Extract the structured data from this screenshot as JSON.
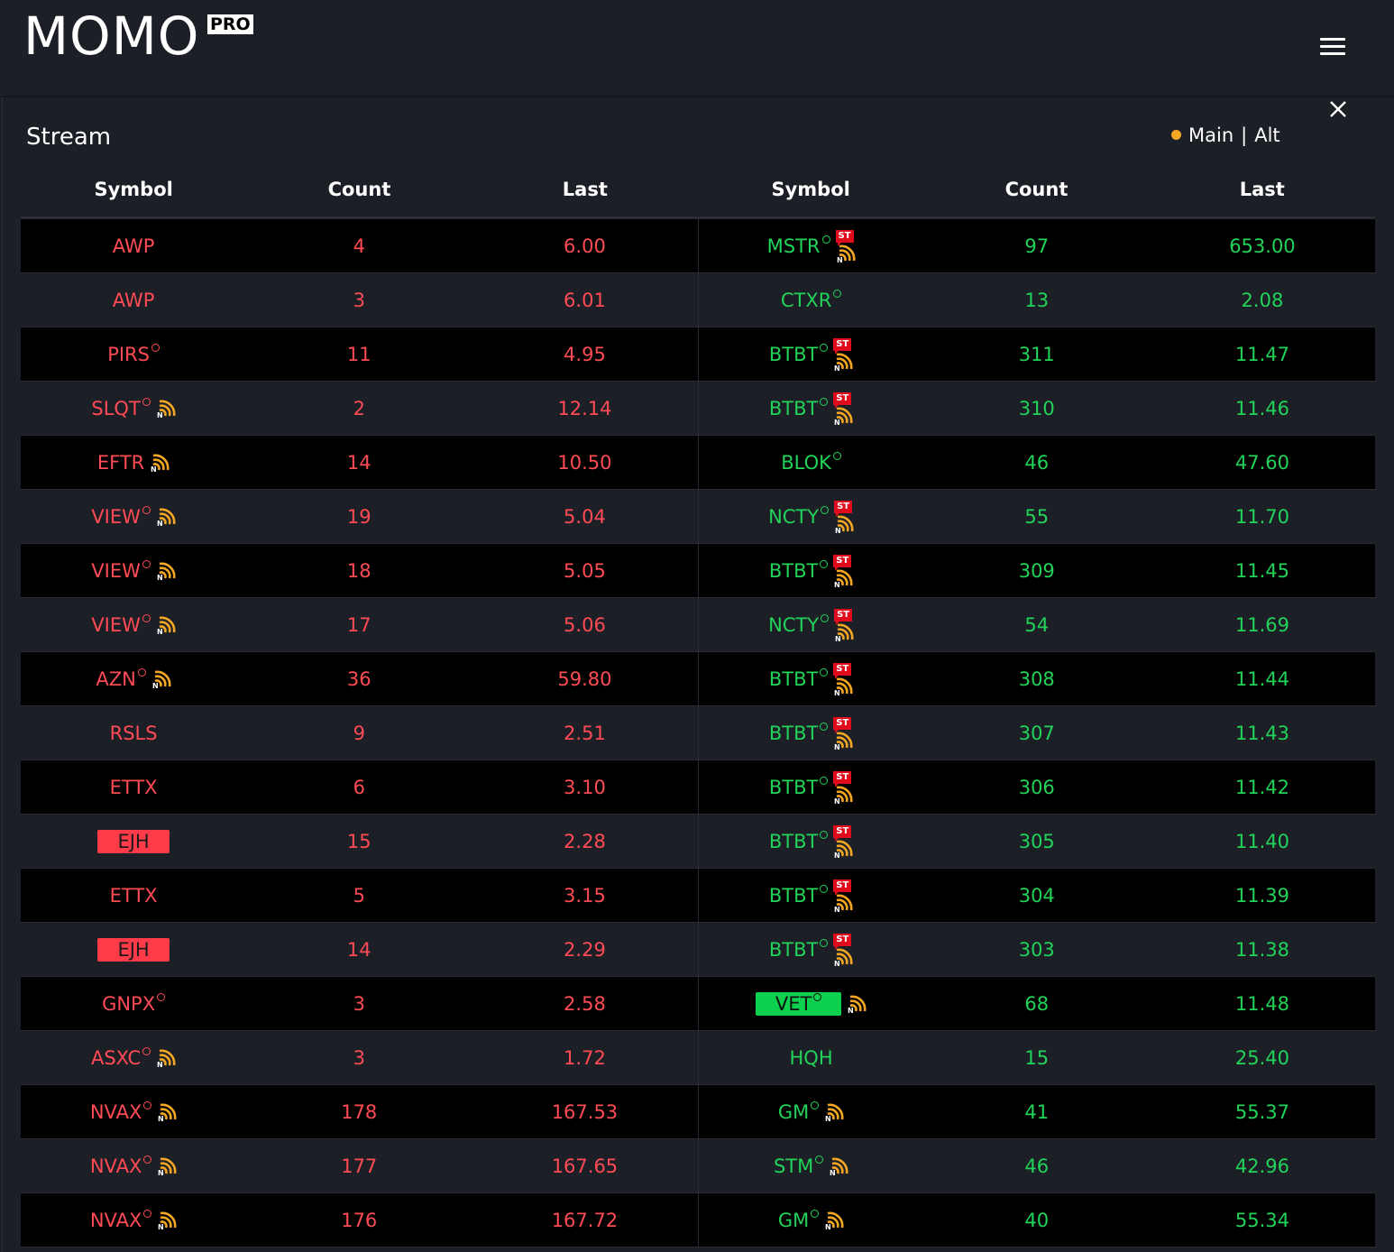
{
  "header": {
    "logo": "MOMO",
    "badge": "PRO"
  },
  "stream": {
    "title": "Stream",
    "mode_main": "Main",
    "mode_sep": "|",
    "mode_alt": "Alt"
  },
  "columns": [
    "Symbol",
    "Count",
    "Last",
    "Symbol",
    "Count",
    "Last"
  ],
  "colors": {
    "red": "#ff4b55",
    "green": "#22d35a",
    "halt_badge": "#ff3b4a",
    "up_badge": "#0ed04f",
    "news": "#f5a623",
    "st": "#e00b1c"
  },
  "left_rows": [
    {
      "symbol": "AWP",
      "count": "4",
      "last": "6.00",
      "ring": false,
      "news": false,
      "badge": false
    },
    {
      "symbol": "AWP",
      "count": "3",
      "last": "6.01",
      "ring": false,
      "news": false,
      "badge": false
    },
    {
      "symbol": "PIRS",
      "count": "11",
      "last": "4.95",
      "ring": true,
      "news": false,
      "badge": false
    },
    {
      "symbol": "SLQT",
      "count": "2",
      "last": "12.14",
      "ring": true,
      "news": true,
      "badge": false
    },
    {
      "symbol": "EFTR",
      "count": "14",
      "last": "10.50",
      "ring": false,
      "news": true,
      "badge": false
    },
    {
      "symbol": "VIEW",
      "count": "19",
      "last": "5.04",
      "ring": true,
      "news": true,
      "badge": false
    },
    {
      "symbol": "VIEW",
      "count": "18",
      "last": "5.05",
      "ring": true,
      "news": true,
      "badge": false
    },
    {
      "symbol": "VIEW",
      "count": "17",
      "last": "5.06",
      "ring": true,
      "news": true,
      "badge": false
    },
    {
      "symbol": "AZN",
      "count": "36",
      "last": "59.80",
      "ring": true,
      "news": true,
      "badge": false
    },
    {
      "symbol": "RSLS",
      "count": "9",
      "last": "2.51",
      "ring": false,
      "news": false,
      "badge": false
    },
    {
      "symbol": "ETTX",
      "count": "6",
      "last": "3.10",
      "ring": false,
      "news": false,
      "badge": false
    },
    {
      "symbol": "EJH",
      "count": "15",
      "last": "2.28",
      "ring": false,
      "news": false,
      "badge": true
    },
    {
      "symbol": "ETTX",
      "count": "5",
      "last": "3.15",
      "ring": false,
      "news": false,
      "badge": false
    },
    {
      "symbol": "EJH",
      "count": "14",
      "last": "2.29",
      "ring": false,
      "news": false,
      "badge": true
    },
    {
      "symbol": "GNPX",
      "count": "3",
      "last": "2.58",
      "ring": true,
      "news": false,
      "badge": false
    },
    {
      "symbol": "ASXC",
      "count": "3",
      "last": "1.72",
      "ring": true,
      "news": true,
      "badge": false
    },
    {
      "symbol": "NVAX",
      "count": "178",
      "last": "167.53",
      "ring": true,
      "news": true,
      "badge": false
    },
    {
      "symbol": "NVAX",
      "count": "177",
      "last": "167.65",
      "ring": true,
      "news": true,
      "badge": false
    },
    {
      "symbol": "NVAX",
      "count": "176",
      "last": "167.72",
      "ring": true,
      "news": true,
      "badge": false
    }
  ],
  "right_rows": [
    {
      "symbol": "MSTR",
      "count": "97",
      "last": "653.00",
      "ring": true,
      "news": true,
      "st": true,
      "badge": false
    },
    {
      "symbol": "CTXR",
      "count": "13",
      "last": "2.08",
      "ring": true,
      "news": false,
      "st": false,
      "badge": false
    },
    {
      "symbol": "BTBT",
      "count": "311",
      "last": "11.47",
      "ring": true,
      "news": true,
      "st": true,
      "badge": false
    },
    {
      "symbol": "BTBT",
      "count": "310",
      "last": "11.46",
      "ring": true,
      "news": true,
      "st": true,
      "badge": false
    },
    {
      "symbol": "BLOK",
      "count": "46",
      "last": "47.60",
      "ring": true,
      "news": false,
      "st": false,
      "badge": false
    },
    {
      "symbol": "NCTY",
      "count": "55",
      "last": "11.70",
      "ring": true,
      "news": true,
      "st": true,
      "badge": false
    },
    {
      "symbol": "BTBT",
      "count": "309",
      "last": "11.45",
      "ring": true,
      "news": true,
      "st": true,
      "badge": false
    },
    {
      "symbol": "NCTY",
      "count": "54",
      "last": "11.69",
      "ring": true,
      "news": true,
      "st": true,
      "badge": false
    },
    {
      "symbol": "BTBT",
      "count": "308",
      "last": "11.44",
      "ring": true,
      "news": true,
      "st": true,
      "badge": false
    },
    {
      "symbol": "BTBT",
      "count": "307",
      "last": "11.43",
      "ring": true,
      "news": true,
      "st": true,
      "badge": false
    },
    {
      "symbol": "BTBT",
      "count": "306",
      "last": "11.42",
      "ring": true,
      "news": true,
      "st": true,
      "badge": false
    },
    {
      "symbol": "BTBT",
      "count": "305",
      "last": "11.40",
      "ring": true,
      "news": true,
      "st": true,
      "badge": false
    },
    {
      "symbol": "BTBT",
      "count": "304",
      "last": "11.39",
      "ring": true,
      "news": true,
      "st": true,
      "badge": false
    },
    {
      "symbol": "BTBT",
      "count": "303",
      "last": "11.38",
      "ring": true,
      "news": true,
      "st": true,
      "badge": false
    },
    {
      "symbol": "VET",
      "count": "68",
      "last": "11.48",
      "ring": true,
      "news": true,
      "st": false,
      "badge": true
    },
    {
      "symbol": "HQH",
      "count": "15",
      "last": "25.40",
      "ring": false,
      "news": false,
      "st": false,
      "badge": false
    },
    {
      "symbol": "GM",
      "count": "41",
      "last": "55.37",
      "ring": true,
      "news": true,
      "st": false,
      "badge": false
    },
    {
      "symbol": "STM",
      "count": "46",
      "last": "42.96",
      "ring": true,
      "news": true,
      "st": false,
      "badge": false
    },
    {
      "symbol": "GM",
      "count": "40",
      "last": "55.34",
      "ring": true,
      "news": true,
      "st": false,
      "badge": false
    }
  ]
}
